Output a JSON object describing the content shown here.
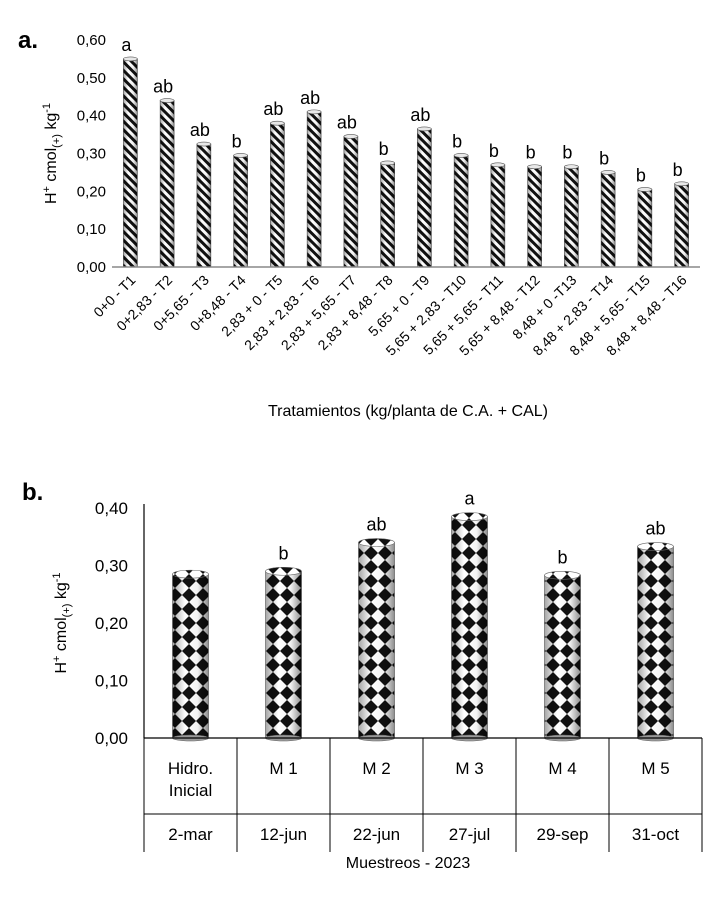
{
  "chart_data": [
    {
      "panel": "a.",
      "type": "bar",
      "title": "",
      "ylabel": "H⁺ cmol(+) kg⁻¹",
      "ylabel_parts": {
        "main": "H",
        "sup1": "+",
        "mid": " cmol",
        "sub": "(+)",
        "tail": " kg",
        "sup2": "-1"
      },
      "xlabel": "Tratamientos (kg/planta de C.A. + CAL)",
      "ylim": [
        0,
        0.6
      ],
      "yticks": [
        0,
        0.1,
        0.2,
        0.3,
        0.4,
        0.5,
        0.6
      ],
      "ytick_labels": [
        "0,00",
        "0,10",
        "0,20",
        "0,30",
        "0,40",
        "0,50",
        "0,60"
      ],
      "categories": [
        "0+0 - T1",
        "0+2,83 - T2",
        "0+5,65 - T3",
        "0+8,48 - T4",
        "2,83 + 0 - T5",
        "2,83 + 2,83 - T6",
        "2,83 + 5,65 - T7",
        "2,83 + 8,48 - T8",
        "5,65 + 0 - T9",
        "5,65 + 2,83 - T10",
        "5,65 + 5,65 - T11",
        "5,65 + 8,48 - T12",
        "8,48 + 0 -T13",
        "8,48 + 2,83 - T14",
        "8,48 + 5,65 - T15",
        "8,48 + 8,48 - T16"
      ],
      "values": [
        0.55,
        0.44,
        0.325,
        0.295,
        0.38,
        0.41,
        0.345,
        0.275,
        0.365,
        0.295,
        0.27,
        0.265,
        0.265,
        0.25,
        0.205,
        0.22
      ],
      "significance": [
        "a",
        "ab",
        "ab",
        "b",
        "ab",
        "ab",
        "ab",
        "b",
        "ab",
        "b",
        "b",
        "b",
        "b",
        "b",
        "b",
        "b"
      ],
      "pattern": "diagonal-stripes"
    },
    {
      "panel": "b.",
      "type": "bar",
      "title": "",
      "ylabel": "H⁺ cmol(+) kg⁻¹",
      "ylabel_parts": {
        "main": "H",
        "sup1": "+",
        "mid": " cmol",
        "sub": "(+)",
        "tail": " kg",
        "sup2": "-1"
      },
      "xlabel": "Muestreos - 2023",
      "ylim": [
        0,
        0.4
      ],
      "yticks": [
        0,
        0.1,
        0.2,
        0.3,
        0.4
      ],
      "ytick_labels": [
        "0,00",
        "0,10",
        "0,20",
        "0,30",
        "0,40"
      ],
      "categories": [
        {
          "name_lines": [
            "Hidro.",
            "Inicial"
          ],
          "date": "2-mar"
        },
        {
          "name_lines": [
            "M 1"
          ],
          "date": "12-jun"
        },
        {
          "name_lines": [
            "M 2"
          ],
          "date": "22-jun"
        },
        {
          "name_lines": [
            "M 3"
          ],
          "date": "27-jul"
        },
        {
          "name_lines": [
            "M 4"
          ],
          "date": "29-sep"
        },
        {
          "name_lines": [
            "M 5"
          ],
          "date": "31-oct"
        }
      ],
      "values": [
        0.285,
        0.29,
        0.34,
        0.385,
        0.283,
        0.333
      ],
      "significance": [
        "",
        "b",
        "ab",
        "a",
        "b",
        "ab"
      ],
      "pattern": "diamond-checker"
    }
  ]
}
